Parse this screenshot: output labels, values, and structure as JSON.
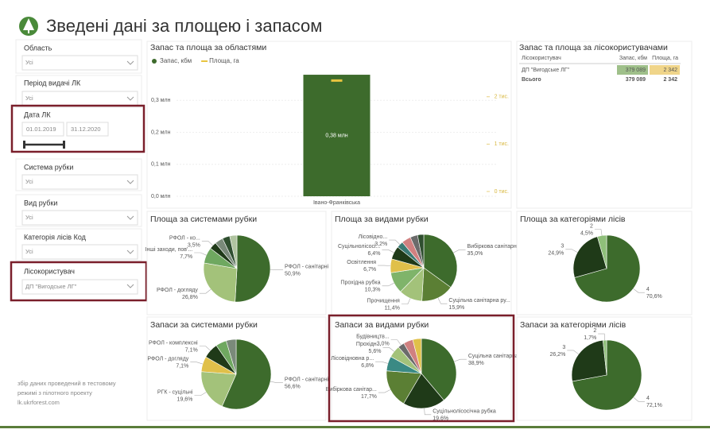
{
  "header": {
    "title": "Зведені дані за площею і запасом"
  },
  "filters": [
    {
      "label": "Область",
      "value": "Усі"
    },
    {
      "label": "Період видачі ЛК",
      "value": "Усі"
    },
    {
      "label": "Дата ЛК",
      "from": "01.01.2019",
      "to": "31.12.2020"
    },
    {
      "label": "Система рубки",
      "value": "Усі"
    },
    {
      "label": "Вид рубки",
      "value": "Усі"
    },
    {
      "label": "Категорія лісів Код",
      "value": "Усі"
    },
    {
      "label": "Лісокористувач",
      "value": "ДП \"Вигодське ЛГ\""
    }
  ],
  "note": [
    "збір даних проведений в тестовому",
    "режимі з пілотного проекту",
    "lk.ukrforest.com"
  ],
  "table": {
    "title": "Запас та площа за лісокористувачами",
    "columns": [
      "Лісокористувач",
      "Запас, кбм",
      "Площа, га"
    ],
    "rows": [
      [
        "ДП \"Вигодське ЛГ\"",
        "379 089",
        "2 342"
      ]
    ],
    "total": [
      "Всього",
      "379 089",
      "2 342"
    ]
  },
  "chart_data": [
    {
      "type": "bar",
      "title": "Запас та площа за областями",
      "categories": [
        "Івано-Франківська"
      ],
      "series": [
        {
          "name": "Запас, кбм",
          "color": "#3d6b2c",
          "values": [
            0.38
          ],
          "value_labels": [
            "0,38 млн"
          ]
        },
        {
          "name": "Площа, га",
          "color": "#e8c440",
          "values": [
            2.342
          ],
          "axis": "y2"
        }
      ],
      "ylim": [
        0,
        0.4
      ],
      "yticks": [
        {
          "value": 0,
          "label": "0,0 млн"
        },
        {
          "value": 0.1,
          "label": "0,1 млн"
        },
        {
          "value": 0.2,
          "label": "0,2 млн"
        },
        {
          "value": 0.3,
          "label": "0,3 млн"
        }
      ],
      "y2lim": [
        0,
        2.6
      ],
      "y2ticks": [
        {
          "value": 0,
          "label": "0 тис."
        },
        {
          "value": 1,
          "label": "1 тис."
        },
        {
          "value": 2,
          "label": "2 тис."
        }
      ],
      "grid": true
    },
    {
      "type": "pie",
      "title": "Площа за системами рубки",
      "categories": [
        "РФОЛ - санітарні",
        "РФОЛ - догляду",
        "Інші заходи, пов'...",
        "РФОЛ - ко...",
        null,
        null,
        null
      ],
      "values": [
        50.9,
        26.8,
        7.7,
        3.5,
        4.0,
        3.6,
        3.5
      ],
      "value_labels": [
        "50,9%",
        "26,8%",
        "7,7%",
        "3,5%",
        null,
        null,
        null
      ],
      "colors": [
        "#3d6b2c",
        "#a3c27a",
        "#6fa860",
        "#1f3a18",
        "#7a8a7a",
        "#2f4f2f",
        "#b0c4a0"
      ]
    },
    {
      "type": "pie",
      "title": "Площа за видами рубки",
      "categories": [
        "Вибіркова санітарна ...",
        "Суцільна санітарна ру...",
        "Прочищення",
        "Прохідна рубка",
        "Освітлення",
        "Суцільнолісосі...",
        "Лісовідно...",
        null,
        null,
        null
      ],
      "values": [
        35.0,
        15.9,
        11.4,
        10.3,
        6.7,
        6.4,
        3.2,
        4.5,
        3.6,
        3.0
      ],
      "value_labels": [
        "35,0%",
        "15,9%",
        "11,4%",
        "10,3%",
        "6,7%",
        "6,4%",
        "3,2%",
        null,
        null,
        null
      ],
      "colors": [
        "#3d6b2c",
        "#5b7f34",
        "#a3c27a",
        "#7fb46a",
        "#e0c04a",
        "#1f3a18",
        "#3a7a74",
        "#d08080",
        "#6b6b6b",
        "#2f4f2f"
      ]
    },
    {
      "type": "pie",
      "title": "Площа за категоріями лісів",
      "categories": [
        "4",
        "3",
        "2"
      ],
      "values": [
        70.6,
        24.9,
        4.5
      ],
      "value_labels": [
        "70,6%",
        "24,9%",
        "4,5%"
      ],
      "colors": [
        "#3d6b2c",
        "#1f3a18",
        "#8fbf7a"
      ]
    },
    {
      "type": "pie",
      "title": "Запаси за системами рубки",
      "categories": [
        "РФОЛ - санітарні",
        "РГК - суцільні",
        "РФОЛ - догляду",
        "РФОЛ - комплексні",
        null,
        null
      ],
      "values": [
        56.6,
        19.6,
        7.1,
        7.1,
        5.0,
        4.6
      ],
      "value_labels": [
        "56,6%",
        "19,6%",
        "7,1%",
        "7,1%",
        null,
        null
      ],
      "colors": [
        "#3d6b2c",
        "#a3c27a",
        "#e0c04a",
        "#1f3a18",
        "#6fa860",
        "#7a8a7a"
      ]
    },
    {
      "type": "pie",
      "title": "Запаси за видами рубки",
      "categories": [
        "Суцільна санітарна ...",
        "Суцільнолісосічна рубка",
        "Вибіркова санітар...",
        "Лісовідновна р...",
        "Прохідн...",
        "Будівництв...",
        null,
        null
      ],
      "values": [
        38.9,
        19.6,
        17.7,
        6.8,
        5.6,
        3.0,
        4.4,
        4.0
      ],
      "value_labels": [
        "38,9%",
        "19,6%",
        "17,7%",
        "6,8%",
        "5,6%",
        "3,0%",
        null,
        null
      ],
      "colors": [
        "#3d6b2c",
        "#1f3a18",
        "#5b7f34",
        "#3a8a84",
        "#a3c27a",
        "#6b6b6b",
        "#d08080",
        "#e0c04a"
      ]
    },
    {
      "type": "pie",
      "title": "Запаси за категоріями лісів",
      "categories": [
        "4",
        "3",
        "2"
      ],
      "values": [
        72.1,
        26.2,
        1.7
      ],
      "value_labels": [
        "72,1%",
        "26,2%",
        "1,7%"
      ],
      "colors": [
        "#3d6b2c",
        "#1f3a18",
        "#8fbf7a"
      ]
    }
  ]
}
